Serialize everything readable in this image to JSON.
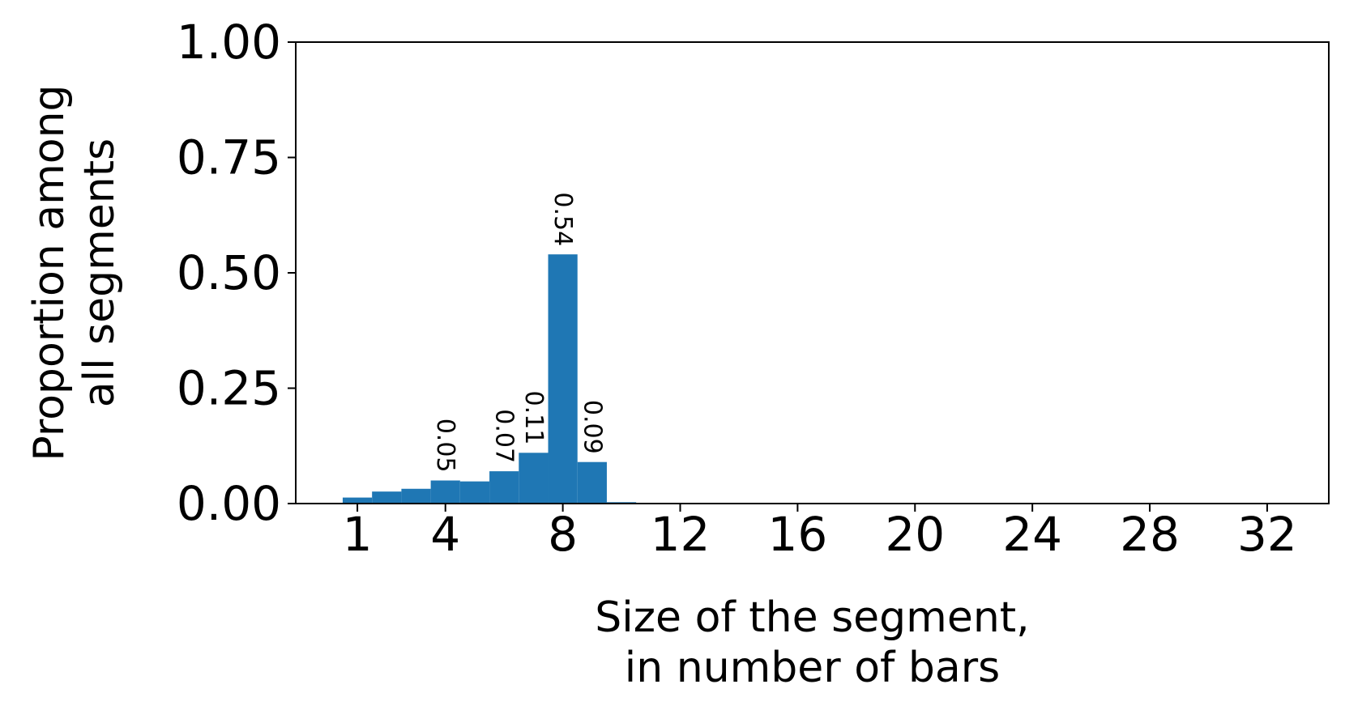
{
  "chart_data": {
    "type": "bar",
    "xlabel": [
      "Size of the segment,",
      "in number of bars"
    ],
    "ylabel": [
      "Proportion among",
      "all segments"
    ],
    "x": [
      1,
      2,
      3,
      4,
      5,
      6,
      7,
      8,
      9,
      10,
      11,
      12,
      13,
      14,
      15,
      16,
      17,
      18,
      19,
      20,
      21,
      22,
      23,
      24,
      25,
      26,
      27,
      28,
      29,
      30,
      31,
      32
    ],
    "values": [
      0.013,
      0.026,
      0.032,
      0.05,
      0.048,
      0.07,
      0.11,
      0.54,
      0.09,
      0.003,
      0,
      0,
      0,
      0,
      0,
      0,
      0,
      0,
      0,
      0,
      0,
      0,
      0,
      0,
      0,
      0,
      0,
      0,
      0,
      0,
      0,
      0
    ],
    "value_labels": [
      null,
      null,
      null,
      "0.05",
      null,
      "0.07",
      "0.11",
      "0.54",
      "0.09",
      null,
      null,
      null,
      null,
      null,
      null,
      null,
      null,
      null,
      null,
      null,
      null,
      null,
      null,
      null,
      null,
      null,
      null,
      null,
      null,
      null,
      null,
      null
    ],
    "color": "#1f77b4",
    "xlim": [
      -1.1,
      34.1
    ],
    "xticks": [
      1,
      4,
      8,
      12,
      16,
      20,
      24,
      28,
      32
    ],
    "ylim": [
      0,
      1
    ],
    "yticks": [
      {
        "value": 0,
        "label": "0.00"
      },
      {
        "value": 0.25,
        "label": "0.25"
      },
      {
        "value": 0.5,
        "label": "0.50"
      },
      {
        "value": 0.75,
        "label": "0.75"
      },
      {
        "value": 1,
        "label": "1.00"
      }
    ],
    "grid": false
  }
}
